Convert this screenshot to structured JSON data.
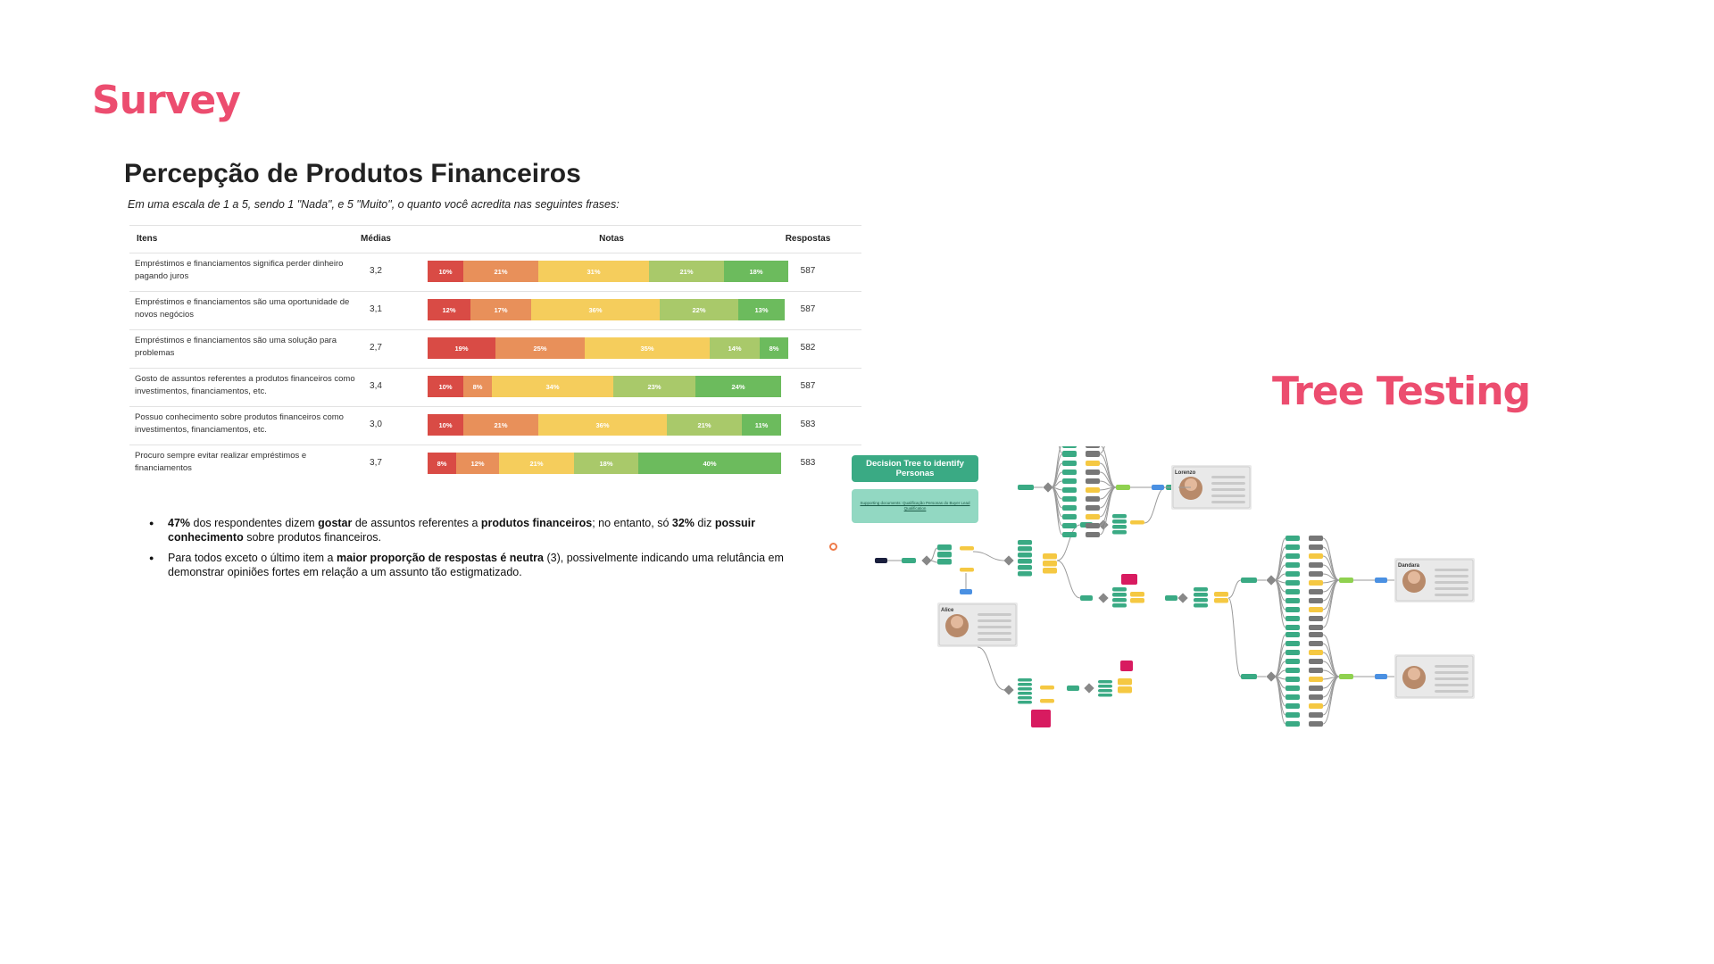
{
  "survey_title": "Survey",
  "tree_testing_title": "Tree Testing",
  "chart_data": {
    "type": "bar",
    "title": "Percepção de Produtos Financeiros",
    "subtitle": "Em uma escala de 1 a 5, sendo 1 \"Nada\", e 5 \"Muito\", o quanto você acredita nas seguintes frases:",
    "columns": [
      "Itens",
      "Médias",
      "Notas",
      "Respostas"
    ],
    "stacked": true,
    "series_colors": [
      "#d94b45",
      "#e8905a",
      "#f5cd5c",
      "#a9c96a",
      "#6cbb5d"
    ],
    "rows": [
      {
        "item": "Empréstimos e financiamentos significa perder dinheiro pagando juros",
        "mean": "3,2",
        "responses": "587",
        "values": [
          10,
          21,
          31,
          21,
          18
        ],
        "labels": [
          "10%",
          "21%",
          "31%",
          "21%",
          "18%"
        ]
      },
      {
        "item": "Empréstimos e financiamentos são uma oportunidade de novos negócios",
        "mean": "3,1",
        "responses": "587",
        "values": [
          12,
          17,
          36,
          22,
          13
        ],
        "labels": [
          "12%",
          "17%",
          "36%",
          "22%",
          "13%"
        ]
      },
      {
        "item": "Empréstimos e financiamentos são uma solução para problemas",
        "mean": "2,7",
        "responses": "582",
        "values": [
          19,
          25,
          35,
          14,
          8
        ],
        "labels": [
          "19%",
          "25%",
          "35%",
          "14%",
          "8%"
        ]
      },
      {
        "item": "Gosto de assuntos referentes a produtos financeiros como investimentos, financiamentos, etc.",
        "mean": "3,4",
        "responses": "587",
        "values": [
          10,
          8,
          34,
          23,
          24
        ],
        "labels": [
          "10%",
          "8%",
          "34%",
          "23%",
          "24%"
        ]
      },
      {
        "item": "Possuo conhecimento sobre produtos financeiros como investimentos, financiamentos, etc.",
        "mean": "3,0",
        "responses": "583",
        "values": [
          10,
          21,
          36,
          21,
          11
        ],
        "labels": [
          "10%",
          "21%",
          "36%",
          "21%",
          "11%"
        ]
      },
      {
        "item": "Procuro sempre evitar realizar empréstimos e financiamentos",
        "mean": "3,7",
        "responses": "583",
        "values": [
          8,
          12,
          21,
          18,
          40
        ],
        "labels": [
          "8%",
          "12%",
          "21%",
          "18%",
          "40%"
        ]
      }
    ]
  },
  "bullets": [
    [
      {
        "t": "47%",
        "b": true
      },
      {
        "t": " dos respondentes dizem "
      },
      {
        "t": "gostar",
        "b": true
      },
      {
        "t": " de assuntos referentes a "
      },
      {
        "t": "produtos financeiros",
        "b": true
      },
      {
        "t": "; no entanto, só "
      },
      {
        "t": "32%",
        "b": true
      },
      {
        "t": " diz "
      },
      {
        "t": "possuir conhecimento",
        "b": true
      },
      {
        "t": " sobre produtos financeiros."
      }
    ],
    [
      {
        "t": "Para todos exceto o último item a "
      },
      {
        "t": "maior proporção de respostas é neutra",
        "b": true
      },
      {
        "t": " (3), possivelmente indicando uma relutância em demonstrar opiniões fortes em relação a um assunto tão estigmatizado."
      }
    ]
  ],
  "decision_tree": {
    "title": "Decision Tree to identify Personas",
    "supporting_doc": "Supporting documents: Qualificação Personas do Buyer Lead Qualification",
    "personas": [
      "Alice",
      "Lorenzo",
      "Dandara"
    ],
    "colors": {
      "teal": "#3aaa84",
      "gray": "#777777",
      "yellow": "#f5c842",
      "green": "#8fd14f",
      "blue": "#4a90e2",
      "pink": "#d81b60",
      "navy": "#1a1f3d"
    }
  }
}
